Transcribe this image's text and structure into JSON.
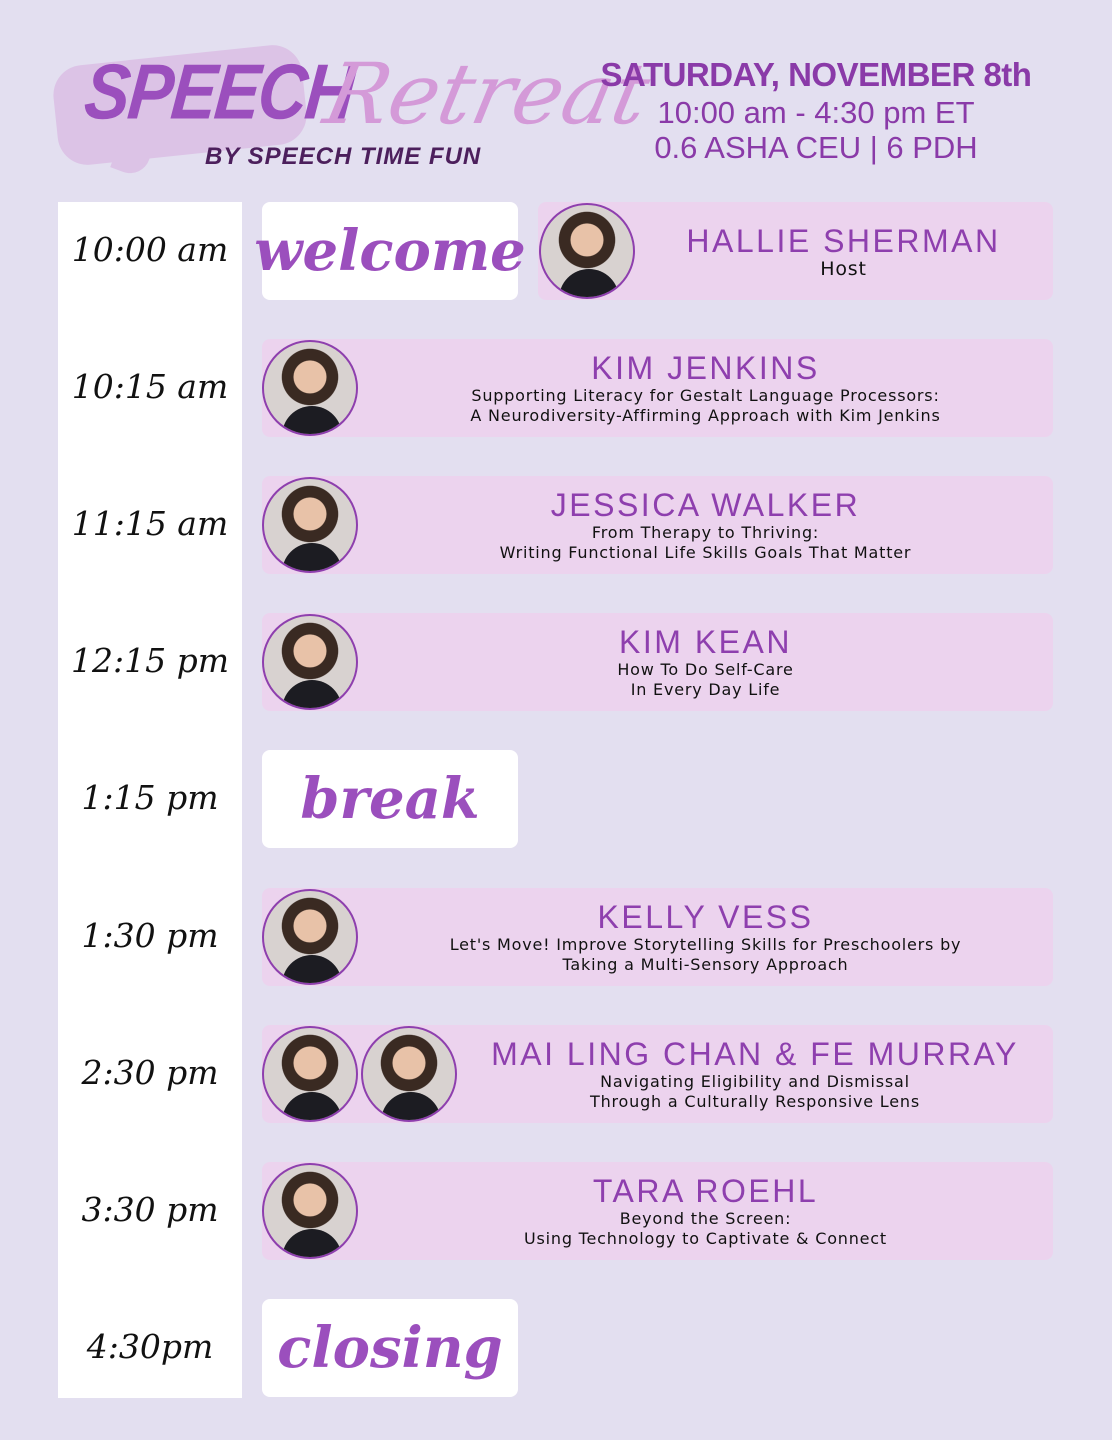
{
  "logo": {
    "word1": "SPEECH",
    "word2": "Retreat",
    "byline": "BY SPEECH TIME FUN"
  },
  "event": {
    "date": "SATURDAY, NOVEMBER 8th",
    "hours": "10:00 am - 4:30 pm ET",
    "credits": "0.6 ASHA CEU | 6 PDH"
  },
  "colors": {
    "background": "#e3dff0",
    "card": "#ecd3ee",
    "accent": "#8e3fae"
  },
  "schedule": [
    {
      "time": "10:00 am",
      "label": "welcome",
      "host": {
        "name": "HALLIE SHERMAN",
        "role": "Host"
      }
    },
    {
      "time": "10:15 am",
      "speaker": "KIM JENKINS",
      "lines": [
        "Supporting Literacy for Gestalt Language Processors:",
        "A Neurodiversity-Affirming Approach with Kim Jenkins"
      ]
    },
    {
      "time": "11:15 am",
      "speaker": "JESSICA WALKER",
      "lines": [
        "From Therapy to Thriving:",
        "Writing Functional Life Skills Goals That Matter"
      ]
    },
    {
      "time": "12:15 pm",
      "speaker": "KIM KEAN",
      "lines": [
        "How To Do Self-Care",
        "In Every Day Life"
      ]
    },
    {
      "time": "1:15 pm",
      "label": "break"
    },
    {
      "time": "1:30 pm",
      "speaker": "KELLY VESS",
      "lines": [
        "Let's Move! Improve Storytelling Skills for Preschoolers by",
        "Taking a Multi-Sensory Approach"
      ]
    },
    {
      "time": "2:30 pm",
      "speaker": "MAI LING CHAN & FE MURRAY",
      "photos": 2,
      "lines": [
        "Navigating Eligibility and Dismissal",
        "Through a Culturally Responsive Lens"
      ]
    },
    {
      "time": "3:30 pm",
      "speaker": "TARA ROEHL",
      "lines": [
        "Beyond the Screen:",
        "Using Technology to Captivate & Connect"
      ]
    },
    {
      "time": "4:30pm",
      "label": "closing"
    }
  ]
}
